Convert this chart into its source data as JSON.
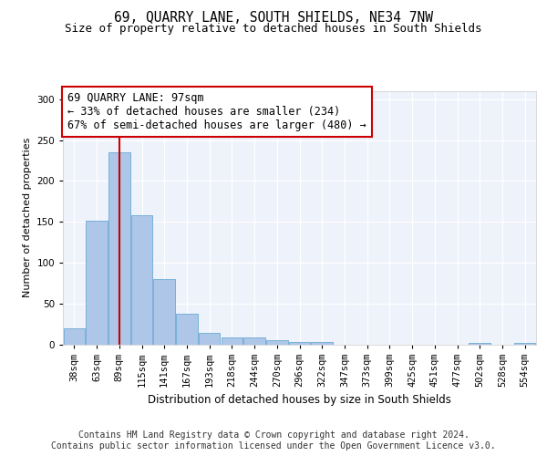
{
  "title": "69, QUARRY LANE, SOUTH SHIELDS, NE34 7NW",
  "subtitle": "Size of property relative to detached houses in South Shields",
  "xlabel": "Distribution of detached houses by size in South Shields",
  "ylabel": "Number of detached properties",
  "categories": [
    "38sqm",
    "63sqm",
    "89sqm",
    "115sqm",
    "141sqm",
    "167sqm",
    "193sqm",
    "218sqm",
    "244sqm",
    "270sqm",
    "296sqm",
    "322sqm",
    "347sqm",
    "373sqm",
    "399sqm",
    "425sqm",
    "451sqm",
    "477sqm",
    "502sqm",
    "528sqm",
    "554sqm"
  ],
  "values": [
    19,
    151,
    235,
    158,
    80,
    37,
    14,
    8,
    8,
    5,
    3,
    3,
    0,
    0,
    0,
    0,
    0,
    0,
    2,
    0,
    2
  ],
  "bar_color": "#aec6e8",
  "bar_edgecolor": "#6aaad4",
  "vline_color": "#cc0000",
  "annotation_text": "69 QUARRY LANE: 97sqm\n← 33% of detached houses are smaller (234)\n67% of semi-detached houses are larger (480) →",
  "annotation_box_color": "#ffffff",
  "annotation_box_edgecolor": "#cc0000",
  "annotation_fontsize": 8.5,
  "ylim": [
    0,
    310
  ],
  "yticks": [
    0,
    50,
    100,
    150,
    200,
    250,
    300
  ],
  "background_color": "#eef2fb",
  "footer_text": "Contains HM Land Registry data © Crown copyright and database right 2024.\nContains public sector information licensed under the Open Government Licence v3.0.",
  "title_fontsize": 10.5,
  "subtitle_fontsize": 9,
  "xlabel_fontsize": 8.5,
  "ylabel_fontsize": 8,
  "footer_fontsize": 7,
  "tick_fontsize": 7.5
}
